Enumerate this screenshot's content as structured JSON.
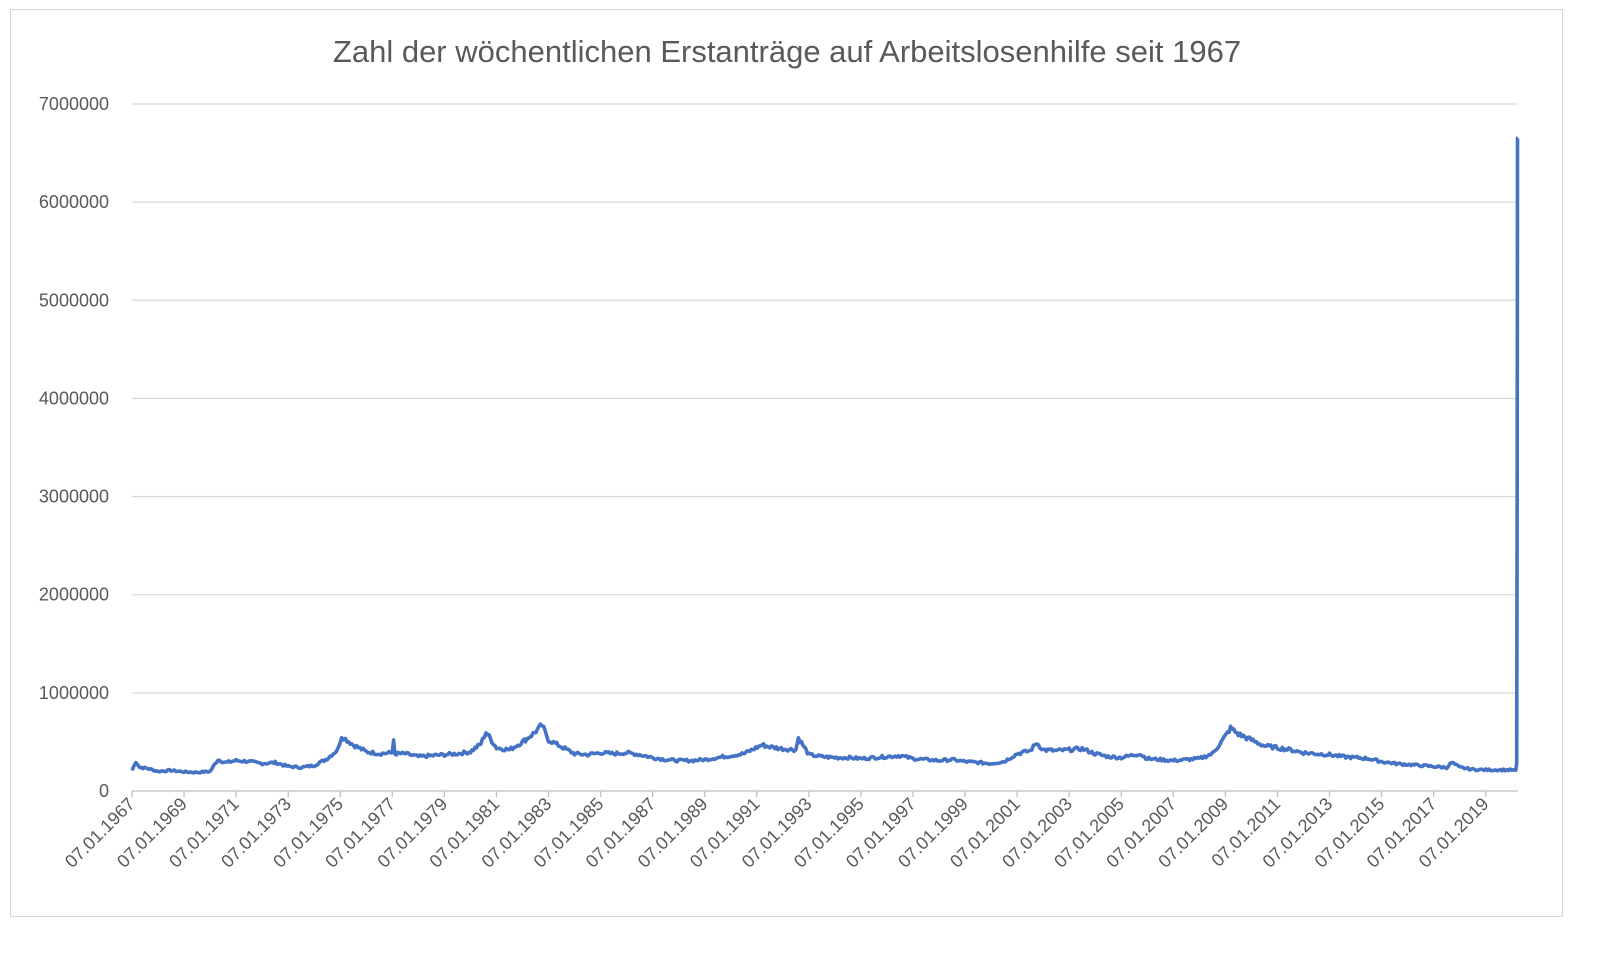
{
  "chart_data": {
    "type": "line",
    "title": "Zahl der wöchentlichen Erstanträge auf Arbeitslosenhilfe seit 1967",
    "xlabel": "",
    "ylabel": "",
    "ylim": [
      0,
      7000000
    ],
    "yticks": [
      "0",
      "1000000",
      "2000000",
      "3000000",
      "4000000",
      "5000000",
      "6000000",
      "7000000"
    ],
    "xlim": [
      1967.0,
      2020.24
    ],
    "xtick_labels": [
      "07.01.1967",
      "07.01.1969",
      "07.01.1971",
      "07.01.1973",
      "07.01.1975",
      "07.01.1977",
      "07.01.1979",
      "07.01.1981",
      "07.01.1983",
      "07.01.1985",
      "07.01.1987",
      "07.01.1989",
      "07.01.1991",
      "07.01.1993",
      "07.01.1995",
      "07.01.1997",
      "07.01.1999",
      "07.01.2001",
      "07.01.2003",
      "07.01.2005",
      "07.01.2007",
      "07.01.2009",
      "07.01.2011",
      "07.01.2013",
      "07.01.2015",
      "07.01.2017",
      "07.01.2019"
    ],
    "grid": true,
    "line_color": "#4472c4",
    "series": [
      {
        "name": "Erstanträge",
        "x": [
          1967.0,
          1967.15,
          1967.3,
          1967.6,
          1968.0,
          1968.5,
          1969.0,
          1969.5,
          1970.0,
          1970.3,
          1970.6,
          1971.0,
          1971.5,
          1972.0,
          1972.5,
          1973.0,
          1973.5,
          1974.0,
          1974.5,
          1974.9,
          1975.05,
          1975.2,
          1975.5,
          1976.0,
          1976.5,
          1977.0,
          1977.05,
          1977.1,
          1977.5,
          1978.0,
          1978.5,
          1979.0,
          1979.5,
          1980.0,
          1980.4,
          1980.6,
          1981.0,
          1981.5,
          1982.0,
          1982.4,
          1982.75,
          1983.0,
          1983.5,
          1984.0,
          1984.5,
          1985.0,
          1985.5,
          1986.0,
          1986.5,
          1987.0,
          1987.5,
          1988.0,
          1988.5,
          1989.0,
          1989.5,
          1990.0,
          1990.5,
          1990.9,
          1991.2,
          1991.5,
          1992.0,
          1992.5,
          1992.6,
          1993.0,
          1993.5,
          1994.0,
          1994.5,
          1995.0,
          1995.5,
          1996.0,
          1996.5,
          1997.0,
          1997.5,
          1998.0,
          1998.5,
          1999.0,
          1999.5,
          2000.0,
          2000.5,
          2001.0,
          2001.5,
          2001.75,
          2002.0,
          2002.5,
          2003.0,
          2003.5,
          2004.0,
          2004.5,
          2005.0,
          2005.7,
          2006.0,
          2006.5,
          2007.0,
          2007.5,
          2008.0,
          2008.5,
          2008.9,
          2009.2,
          2009.5,
          2010.0,
          2010.5,
          2011.0,
          2011.5,
          2012.0,
          2012.5,
          2013.0,
          2013.5,
          2014.0,
          2014.5,
          2015.0,
          2015.5,
          2016.0,
          2016.5,
          2017.0,
          2017.5,
          2017.7,
          2018.0,
          2018.5,
          2019.0,
          2019.5,
          2020.0,
          2020.15,
          2020.19,
          2020.21,
          2020.22,
          2020.23,
          2020.24
        ],
        "values": [
          210000,
          300000,
          240000,
          230000,
          200000,
          210000,
          195000,
          190000,
          200000,
          320000,
          290000,
          310000,
          300000,
          280000,
          290000,
          250000,
          240000,
          260000,
          330000,
          420000,
          560000,
          530000,
          470000,
          400000,
          380000,
          390000,
          520000,
          380000,
          380000,
          350000,
          360000,
          370000,
          380000,
          400000,
          480000,
          600000,
          440000,
          420000,
          500000,
          580000,
          670000,
          520000,
          450000,
          380000,
          370000,
          390000,
          380000,
          390000,
          370000,
          340000,
          320000,
          310000,
          310000,
          320000,
          340000,
          360000,
          380000,
          430000,
          470000,
          450000,
          430000,
          420000,
          540000,
          370000,
          350000,
          340000,
          340000,
          330000,
          340000,
          350000,
          360000,
          330000,
          320000,
          310000,
          320000,
          300000,
          290000,
          280000,
          300000,
          380000,
          410000,
          490000,
          420000,
          410000,
          420000,
          430000,
          380000,
          350000,
          340000,
          380000,
          330000,
          320000,
          310000,
          320000,
          330000,
          380000,
          520000,
          640000,
          580000,
          520000,
          460000,
          440000,
          420000,
          390000,
          380000,
          370000,
          350000,
          340000,
          330000,
          300000,
          280000,
          270000,
          260000,
          250000,
          240000,
          290000,
          240000,
          220000,
          215000,
          215000,
          215000,
          211000,
          282000,
          3300000,
          6650000,
          6650000,
          6650000
        ]
      }
    ]
  }
}
